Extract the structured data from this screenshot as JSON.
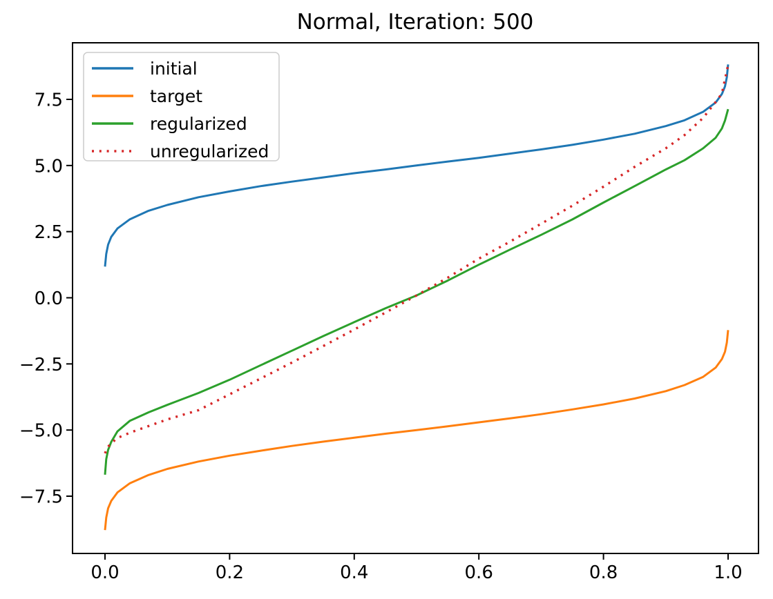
{
  "title": "Normal, Iteration: 500",
  "colors": {
    "initial": "#1f77b4",
    "target": "#ff7f0e",
    "regularized": "#2ca02c",
    "unregularized": "#d62728",
    "spine": "#000000",
    "legend_border": "#cccccc",
    "background": "#ffffff"
  },
  "chart_data": {
    "type": "line",
    "title": "Normal, Iteration: 500",
    "xlabel": "",
    "ylabel": "",
    "xlim": [
      -0.05,
      1.05
    ],
    "ylim": [
      -9.6,
      9.65
    ],
    "grid": false,
    "legend_position": "upper left",
    "x_ticks": [
      0.0,
      0.2,
      0.4,
      0.6,
      0.8,
      1.0
    ],
    "x_tick_labels": [
      "0.0",
      "0.2",
      "0.4",
      "0.6",
      "0.8",
      "1.0"
    ],
    "y_ticks": [
      -7.5,
      -5.0,
      -2.5,
      0.0,
      2.5,
      5.0,
      7.5
    ],
    "y_tick_labels": [
      "−7.5",
      "−5.0",
      "−2.5",
      "0.0",
      "2.5",
      "5.0",
      "7.5"
    ],
    "series": [
      {
        "name": "initial",
        "color": "#1f77b4",
        "style": "solid",
        "points": [
          [
            0,
            1.18
          ],
          [
            0.001,
            1.42
          ],
          [
            0.002,
            1.66
          ],
          [
            0.005,
            2.01
          ],
          [
            0.01,
            2.3
          ],
          [
            0.02,
            2.62
          ],
          [
            0.04,
            2.97
          ],
          [
            0.07,
            3.29
          ],
          [
            0.1,
            3.51
          ],
          [
            0.15,
            3.8
          ],
          [
            0.2,
            4.02
          ],
          [
            0.25,
            4.22
          ],
          [
            0.3,
            4.39
          ],
          [
            0.35,
            4.55
          ],
          [
            0.4,
            4.71
          ],
          [
            0.45,
            4.85
          ],
          [
            0.5,
            5.0
          ],
          [
            0.55,
            5.15
          ],
          [
            0.6,
            5.29
          ],
          [
            0.65,
            5.45
          ],
          [
            0.7,
            5.61
          ],
          [
            0.75,
            5.78
          ],
          [
            0.8,
            5.98
          ],
          [
            0.85,
            6.2
          ],
          [
            0.9,
            6.49
          ],
          [
            0.93,
            6.71
          ],
          [
            0.96,
            7.03
          ],
          [
            0.98,
            7.38
          ],
          [
            0.99,
            7.7
          ],
          [
            0.995,
            7.99
          ],
          [
            0.998,
            8.34
          ],
          [
            1.0,
            8.82
          ]
        ]
      },
      {
        "name": "target",
        "color": "#ff7f0e",
        "style": "solid",
        "points": [
          [
            0,
            -8.78
          ],
          [
            0.001,
            -8.55
          ],
          [
            0.002,
            -8.31
          ],
          [
            0.005,
            -7.96
          ],
          [
            0.01,
            -7.68
          ],
          [
            0.02,
            -7.36
          ],
          [
            0.04,
            -7.01
          ],
          [
            0.07,
            -6.7
          ],
          [
            0.1,
            -6.47
          ],
          [
            0.15,
            -6.19
          ],
          [
            0.2,
            -5.97
          ],
          [
            0.25,
            -5.78
          ],
          [
            0.3,
            -5.6
          ],
          [
            0.35,
            -5.44
          ],
          [
            0.4,
            -5.29
          ],
          [
            0.45,
            -5.14
          ],
          [
            0.5,
            -5.0
          ],
          [
            0.55,
            -4.86
          ],
          [
            0.6,
            -4.71
          ],
          [
            0.65,
            -4.56
          ],
          [
            0.7,
            -4.4
          ],
          [
            0.75,
            -4.22
          ],
          [
            0.8,
            -4.03
          ],
          [
            0.85,
            -3.81
          ],
          [
            0.9,
            -3.53
          ],
          [
            0.93,
            -3.3
          ],
          [
            0.96,
            -2.99
          ],
          [
            0.98,
            -2.64
          ],
          [
            0.99,
            -2.32
          ],
          [
            0.995,
            -2.04
          ],
          [
            0.998,
            -1.69
          ],
          [
            1.0,
            -1.22
          ]
        ]
      },
      {
        "name": "regularized",
        "color": "#2ca02c",
        "style": "solid",
        "points": [
          [
            0,
            -6.69
          ],
          [
            0.002,
            -6.1
          ],
          [
            0.005,
            -5.75
          ],
          [
            0.01,
            -5.45
          ],
          [
            0.02,
            -5.05
          ],
          [
            0.04,
            -4.65
          ],
          [
            0.07,
            -4.33
          ],
          [
            0.1,
            -4.05
          ],
          [
            0.15,
            -3.6
          ],
          [
            0.2,
            -3.1
          ],
          [
            0.25,
            -2.55
          ],
          [
            0.3,
            -2.0
          ],
          [
            0.35,
            -1.45
          ],
          [
            0.4,
            -0.92
          ],
          [
            0.45,
            -0.4
          ],
          [
            0.5,
            0.09
          ],
          [
            0.55,
            0.65
          ],
          [
            0.6,
            1.25
          ],
          [
            0.65,
            1.82
          ],
          [
            0.7,
            2.38
          ],
          [
            0.75,
            2.96
          ],
          [
            0.8,
            3.6
          ],
          [
            0.85,
            4.22
          ],
          [
            0.9,
            4.85
          ],
          [
            0.93,
            5.2
          ],
          [
            0.96,
            5.65
          ],
          [
            0.98,
            6.05
          ],
          [
            0.99,
            6.4
          ],
          [
            0.995,
            6.7
          ],
          [
            1.0,
            7.13
          ]
        ]
      },
      {
        "name": "unregularized",
        "color": "#d62728",
        "style": "dotted",
        "points": [
          [
            0,
            -5.88
          ],
          [
            0.002,
            -5.76
          ],
          [
            0.005,
            -5.63
          ],
          [
            0.01,
            -5.5
          ],
          [
            0.02,
            -5.3
          ],
          [
            0.04,
            -5.1
          ],
          [
            0.07,
            -4.85
          ],
          [
            0.1,
            -4.6
          ],
          [
            0.15,
            -4.25
          ],
          [
            0.2,
            -3.65
          ],
          [
            0.25,
            -3.05
          ],
          [
            0.3,
            -2.45
          ],
          [
            0.35,
            -1.83
          ],
          [
            0.4,
            -1.2
          ],
          [
            0.45,
            -0.56
          ],
          [
            0.5,
            0.09
          ],
          [
            0.55,
            0.76
          ],
          [
            0.6,
            1.48
          ],
          [
            0.65,
            2.12
          ],
          [
            0.7,
            2.8
          ],
          [
            0.75,
            3.48
          ],
          [
            0.8,
            4.2
          ],
          [
            0.85,
            4.95
          ],
          [
            0.9,
            5.65
          ],
          [
            0.93,
            6.15
          ],
          [
            0.96,
            6.8
          ],
          [
            0.97,
            7.1
          ],
          [
            0.98,
            7.4
          ],
          [
            0.99,
            7.72
          ],
          [
            1.0,
            8.8
          ]
        ]
      }
    ]
  }
}
